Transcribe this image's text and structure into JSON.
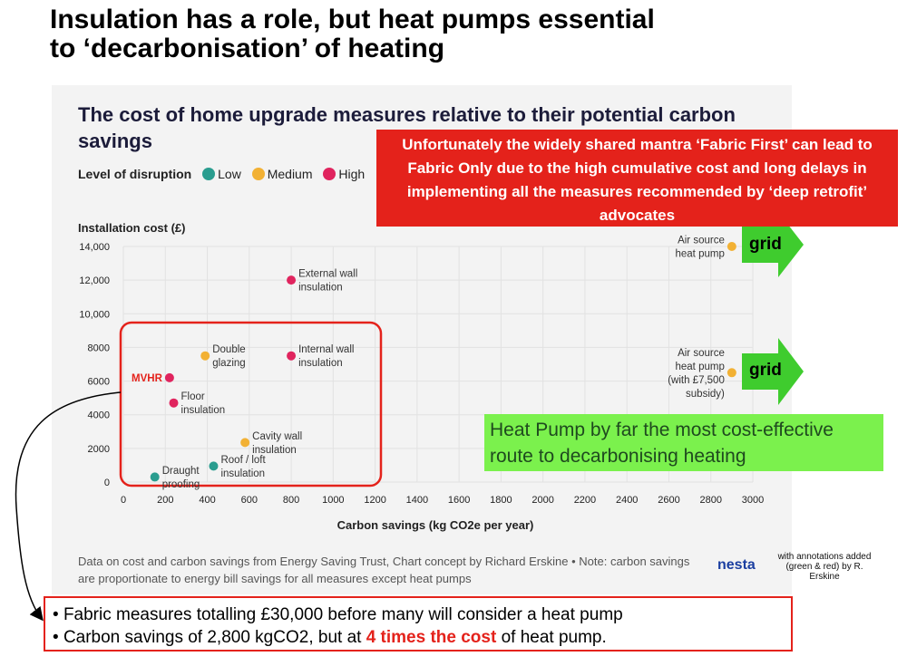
{
  "slide": {
    "title_line1": "Insulation has a role, but heat pumps essential",
    "title_line2": "to ‘decarbonisation’ of heating"
  },
  "legend": {
    "title": "Level of disruption",
    "items": [
      {
        "label": "Low",
        "color": "#2a9d8f"
      },
      {
        "label": "Medium",
        "color": "#f2b134"
      },
      {
        "label": "High",
        "color": "#e0245e"
      }
    ]
  },
  "chart_data": {
    "type": "scatter",
    "title": "The cost of home upgrade measures relative to their potential carbon savings",
    "xlabel": "Carbon savings (kg CO2e per year)",
    "ylabel": "Installation cost (£)",
    "xlim": [
      0,
      3000
    ],
    "ylim": [
      0,
      14000
    ],
    "xticks": [
      0,
      200,
      400,
      600,
      800,
      1000,
      1200,
      1400,
      1600,
      1800,
      2000,
      2200,
      2400,
      2600,
      2800,
      3000
    ],
    "xtick_labels": [
      "0",
      "200",
      "400",
      "600",
      "800",
      "1000",
      "1200",
      "1400",
      "1600",
      "1800",
      "2000",
      "2200",
      "2400",
      "2600",
      "2800",
      "3000"
    ],
    "yticks": [
      0,
      2000,
      4000,
      6000,
      8000,
      10000,
      12000,
      14000
    ],
    "ytick_labels": [
      "0",
      "2000",
      "4000",
      "6000",
      "8000",
      "10,000",
      "12,000",
      "14,000"
    ],
    "grid": true,
    "points": [
      {
        "name": "Draught proofing",
        "label_lines": [
          "Draught",
          "proofing"
        ],
        "x": 150,
        "y": 300,
        "disruption": "Low"
      },
      {
        "name": "Roof / loft insulation",
        "label_lines": [
          "Roof / loft",
          "insulation"
        ],
        "x": 430,
        "y": 950,
        "disruption": "Low"
      },
      {
        "name": "Cavity wall insulation",
        "label_lines": [
          "Cavity wall",
          "insulation"
        ],
        "x": 580,
        "y": 2350,
        "disruption": "Medium"
      },
      {
        "name": "Floor insulation",
        "label_lines": [
          "Floor",
          "insulation"
        ],
        "x": 240,
        "y": 4700,
        "disruption": "High"
      },
      {
        "name": "MVHR",
        "label_lines": [
          "MVHR"
        ],
        "x": 220,
        "y": 6200,
        "disruption": "High"
      },
      {
        "name": "Double glazing",
        "label_lines": [
          "Double",
          "glazing"
        ],
        "x": 390,
        "y": 7500,
        "disruption": "Medium"
      },
      {
        "name": "Internal wall insulation",
        "label_lines": [
          "Internal wall",
          "insulation"
        ],
        "x": 800,
        "y": 7500,
        "disruption": "High"
      },
      {
        "name": "External wall insulation",
        "label_lines": [
          "External wall",
          "insulation"
        ],
        "x": 800,
        "y": 12000,
        "disruption": "High"
      },
      {
        "name": "Air source heat pump",
        "label_lines": [
          "Air source",
          "heat pump"
        ],
        "x": 2900,
        "y": 14000,
        "disruption": "Medium"
      },
      {
        "name": "Air source heat pump (with £7,500 subsidy)",
        "label_lines": [
          "Air source",
          "heat pump",
          "(with £7,500",
          "subsidy)"
        ],
        "x": 2900,
        "y": 6500,
        "disruption": "Medium"
      }
    ],
    "annotations": {
      "red_callout": "Unfortunately the widely shared mantra ‘Fabric First’ can lead to Fabric Only due to the high cumulative cost and long delays in implementing all the measures recommended by ‘deep retrofit’ advocates",
      "green_callout": "Heat Pump by far the most cost-effective route to decarbonising heating",
      "grid_arrow_label": "grid",
      "fabric_box_range": {
        "x": [
          0,
          1200
        ],
        "y": [
          0,
          9000
        ]
      }
    },
    "source_note": "Data on cost and carbon savings from Energy Saving Trust, Chart concept by Richard Erskine • Note: carbon savings are proportionate to energy bill savings for all measures except heat pumps"
  },
  "branding": {
    "logo": "nesta",
    "credit": "with annotations added (green & red) by R. Erskine"
  },
  "bullets": [
    {
      "text": "Fabric measures totalling £30,000 before many will consider a heat pump"
    },
    {
      "text_before": "Carbon savings of 2,800 kgCO2, but at ",
      "highlight": "4 times the cost",
      "text_after": " of heat pump."
    }
  ],
  "colors": {
    "low": "#2a9d8f",
    "medium": "#f2b134",
    "high": "#e0245e",
    "annotation_red": "#e4221b",
    "annotation_green": "#7bf14d",
    "arrow_green": "#3fcc2e"
  }
}
